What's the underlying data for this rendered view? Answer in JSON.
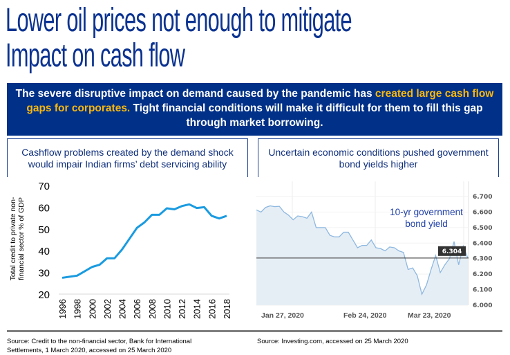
{
  "title": {
    "line1": "Lower oil prices not enough to mitigate",
    "line2": "Impact on cash flow"
  },
  "banner": {
    "part1": "The severe disruptive impact on demand caused by the pandemic has ",
    "highlight": "created large cash flow gaps for corporates.",
    "part2": " Tight financial conditions will make it difficult for them to fill this gap through market borrowing."
  },
  "colors": {
    "banner_bg": "#003087",
    "highlight": "#f8b812",
    "line_left": "#1a9be0",
    "line_right": "#8db8e0",
    "fill_right": "#e6eef5",
    "title": "#0a3290"
  },
  "boxes": {
    "left": "Cashflow problems created by the demand shock would impair Indian firms’ debt servicing ability",
    "right": "Uncertain economic conditions pushed government bond yields higher"
  },
  "chart_data": [
    {
      "type": "line",
      "ylabel": "Total credit to private non-financial sector % of GDP",
      "ylim": [
        20,
        70
      ],
      "yticks": [
        "20",
        "30",
        "40",
        "50",
        "60",
        "70"
      ],
      "x": [
        1996,
        1997,
        1998,
        1999,
        2000,
        2001,
        2002,
        2003,
        2004,
        2005,
        2006,
        2007,
        2008,
        2009,
        2010,
        2011,
        2012,
        2013,
        2014,
        2015,
        2016,
        2017,
        2018
      ],
      "xticks": [
        "1996",
        "1998",
        "2000",
        "2002",
        "2004",
        "2006",
        "2008",
        "2010",
        "2012",
        "2014",
        "2016",
        "2018"
      ],
      "values": [
        27.5,
        28,
        28.5,
        30.5,
        32.5,
        33.5,
        36.5,
        36.5,
        40.5,
        45.5,
        50.5,
        53,
        56.5,
        56.5,
        59.5,
        59,
        60.5,
        61.3,
        59.6,
        60,
        56,
        54.8,
        56
      ],
      "grid": false
    },
    {
      "type": "area",
      "annotation": "10-yr government bond yield",
      "ylim": [
        6.0,
        6.7
      ],
      "yticks": [
        "6.000",
        "6.100",
        "6.200",
        "6.300",
        "6.400",
        "6.500",
        "6.600",
        "6.700"
      ],
      "xticks": [
        "Jan 27, 2020",
        "Feb 24, 2020",
        "Mar 23, 2020"
      ],
      "current_value": "6.304",
      "values": [
        6.614,
        6.6,
        6.63,
        6.64,
        6.635,
        6.637,
        6.6,
        6.58,
        6.55,
        6.575,
        6.57,
        6.56,
        6.6,
        6.5,
        6.5,
        6.5,
        6.45,
        6.44,
        6.44,
        6.47,
        6.47,
        6.42,
        6.37,
        6.385,
        6.385,
        6.42,
        6.37,
        6.365,
        6.35,
        6.375,
        6.37,
        6.35,
        6.34,
        6.23,
        6.24,
        6.19,
        6.07,
        6.13,
        6.23,
        6.32,
        6.21,
        6.26,
        6.3,
        6.41,
        6.26,
        6.38,
        6.304
      ],
      "grid": true
    }
  ],
  "sources": {
    "left": "Source: Credit to the non-financial sector, Bank for International Settlements, 1 March 2020, accessed on 25 March 2020",
    "right": "Source: Investing.com, accessed on 25 March 2020"
  }
}
